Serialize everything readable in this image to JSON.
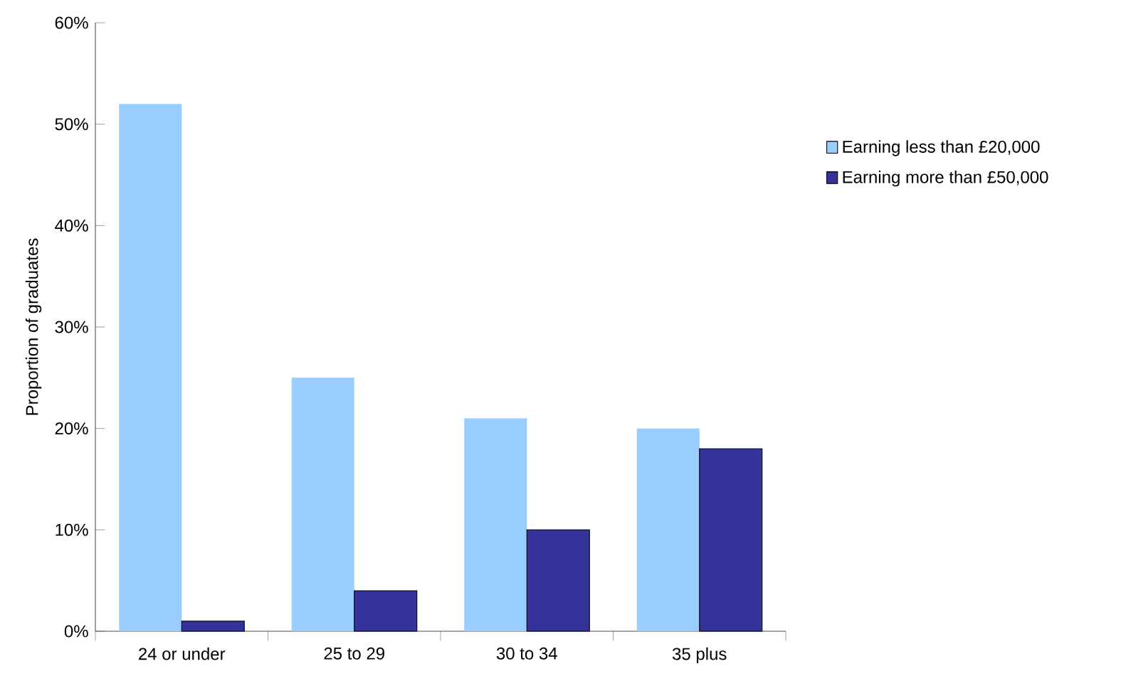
{
  "chart_data": {
    "type": "bar",
    "ylabel": "Proportion of graduates",
    "categories": [
      "24 or under",
      "25 to 29",
      "30 to 34",
      "35 plus"
    ],
    "series": [
      {
        "name": "Earning less than £20,000",
        "color": "#99ccff",
        "values": [
          52,
          25,
          21,
          20
        ]
      },
      {
        "name": "Earning more than £50,000",
        "color": "#333399",
        "values": [
          1,
          4,
          10,
          18
        ]
      }
    ],
    "ylim": [
      0,
      60
    ],
    "yticks": [
      {
        "value": 0,
        "label": "0%"
      },
      {
        "value": 10,
        "label": "10%"
      },
      {
        "value": 20,
        "label": "20%"
      },
      {
        "value": 30,
        "label": "30%"
      },
      {
        "value": 40,
        "label": "40%"
      },
      {
        "value": 50,
        "label": "50%"
      },
      {
        "value": 60,
        "label": "60%"
      }
    ],
    "grid": false,
    "legend": "right"
  }
}
